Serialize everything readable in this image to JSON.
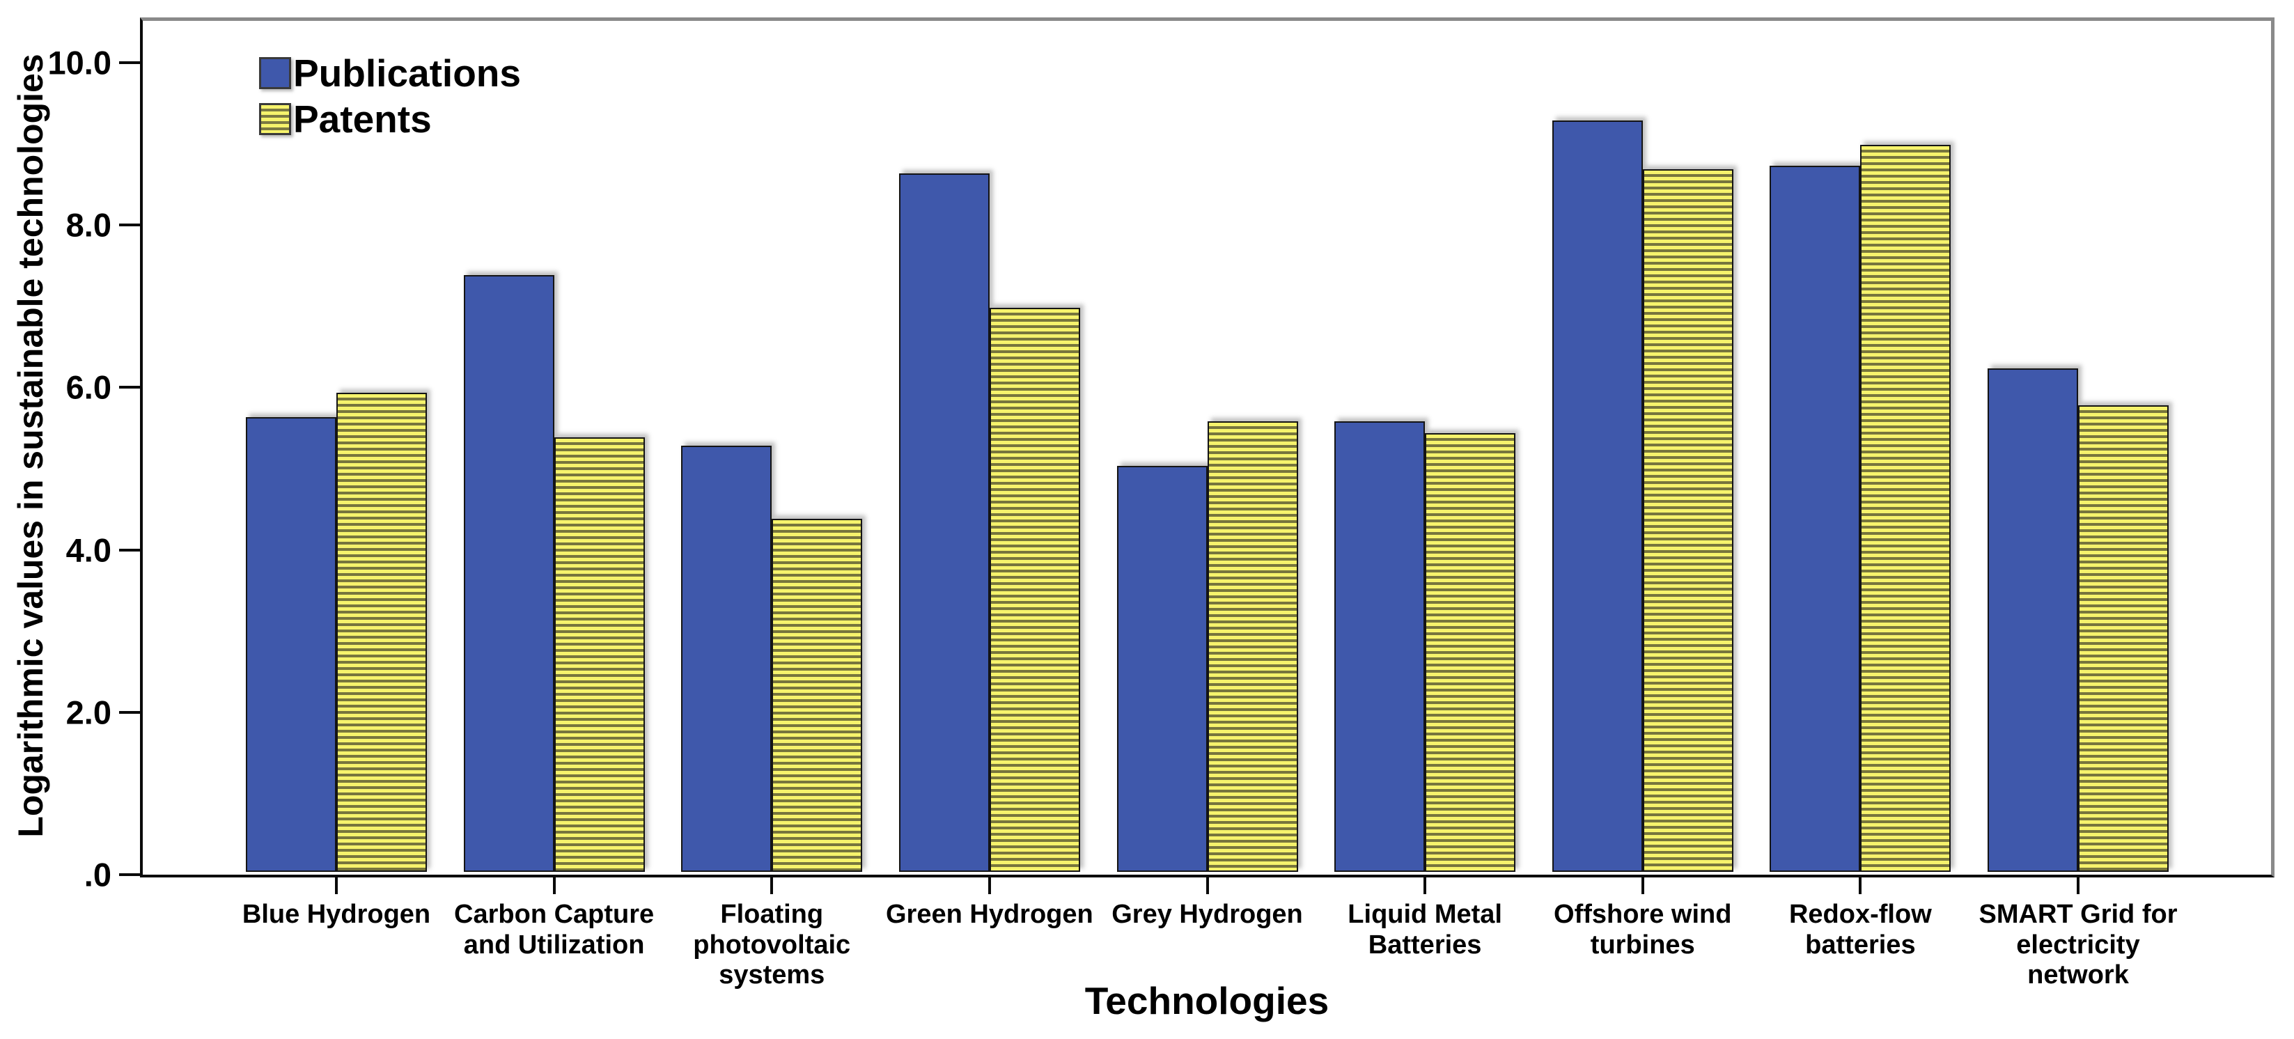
{
  "chart_data": {
    "type": "bar",
    "title": "",
    "xlabel": "Technologies",
    "ylabel": "Logarithmic values in sustainable technologies",
    "categories": [
      "Blue Hydrogen",
      "Carbon Capture and Utilization",
      "Floating photovoltaic systems",
      "Green Hydrogen",
      "Grey Hydrogen",
      "Liquid Metal Batteries",
      "Offshore wind turbines",
      "Redox-flow batteries",
      "SMART Grid for electricity network"
    ],
    "series": [
      {
        "name": "Publications",
        "values": [
          5.6,
          7.35,
          5.25,
          8.6,
          5.0,
          5.55,
          9.25,
          8.7,
          6.2
        ]
      },
      {
        "name": "Patents",
        "values": [
          5.9,
          5.35,
          4.35,
          6.95,
          5.55,
          5.4,
          8.65,
          8.95,
          5.75
        ]
      }
    ],
    "yticks": [
      {
        "label": ".0",
        "value": 0
      },
      {
        "label": "2.0",
        "value": 2
      },
      {
        "label": "4.0",
        "value": 4
      },
      {
        "label": "6.0",
        "value": 6
      },
      {
        "label": "8.0",
        "value": 8
      },
      {
        "label": "10.0",
        "value": 10
      }
    ],
    "ylim": [
      0,
      10.55
    ],
    "grid": false,
    "legend_position": "top-left-inside"
  },
  "colors": {
    "publications_fill": "#3f58ab",
    "patents_fill": "#f6f36c",
    "patents_stripe": "#77753d",
    "frame_shadow": "#8a8a8a",
    "axis": "#0a0a0a"
  }
}
